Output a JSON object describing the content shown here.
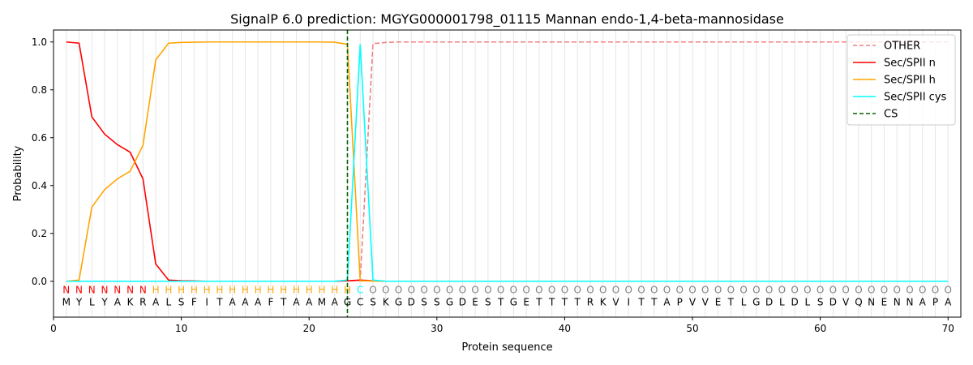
{
  "chart_data": {
    "type": "line",
    "title": "SignalP 6.0 prediction: MGYG000001798_01115 Mannan endo-1,4-beta-mannosidase",
    "xlabel": "Protein sequence",
    "ylabel": "Probability",
    "xlim": [
      0,
      71
    ],
    "ylim": [
      -0.15,
      1.05
    ],
    "xticks": [
      0,
      10,
      20,
      30,
      40,
      50,
      60,
      70
    ],
    "yticks": [
      0.0,
      0.2,
      0.4,
      0.6,
      0.8,
      1.0
    ],
    "grid": "vertical lines at each residue",
    "legend_position": "top-right",
    "sequence": [
      "M",
      "Y",
      "L",
      "Y",
      "A",
      "K",
      "R",
      "A",
      "L",
      "S",
      "F",
      "I",
      "T",
      "A",
      "A",
      "A",
      "F",
      "T",
      "A",
      "A",
      "M",
      "A",
      "G",
      "C",
      "S",
      "K",
      "G",
      "D",
      "S",
      "S",
      "G",
      "D",
      "E",
      "S",
      "T",
      "G",
      "E",
      "T",
      "T",
      "T",
      "T",
      "R",
      "K",
      "V",
      "I",
      "T",
      "T",
      "A",
      "P",
      "V",
      "V",
      "E",
      "T",
      "L",
      "G",
      "D",
      "L",
      "D",
      "L",
      "S",
      "D",
      "V",
      "Q",
      "N",
      "E",
      "N",
      "N",
      "A",
      "P",
      "A"
    ],
    "labels": [
      "N",
      "N",
      "N",
      "N",
      "N",
      "N",
      "N",
      "H",
      "H",
      "H",
      "H",
      "H",
      "H",
      "H",
      "H",
      "H",
      "H",
      "H",
      "H",
      "H",
      "H",
      "H",
      "H",
      "C",
      "O",
      "O",
      "O",
      "O",
      "O",
      "O",
      "O",
      "O",
      "O",
      "O",
      "O",
      "O",
      "O",
      "O",
      "O",
      "O",
      "O",
      "O",
      "O",
      "O",
      "O",
      "O",
      "O",
      "O",
      "O",
      "O",
      "O",
      "O",
      "O",
      "O",
      "O",
      "O",
      "O",
      "O",
      "O",
      "O",
      "O",
      "O",
      "O",
      "O",
      "O",
      "O",
      "O",
      "O",
      "O",
      "O"
    ],
    "label_colors": {
      "N": "#ff0000",
      "H": "#ffa500",
      "C": "#00ffff",
      "O": "#808080"
    },
    "cleavage_site": 23,
    "series": [
      {
        "name": "OTHER",
        "color": "#f08080",
        "dash": true,
        "values": [
          0,
          0,
          0,
          0,
          0,
          0,
          0,
          0,
          0,
          0,
          0,
          0,
          0,
          0,
          0,
          0,
          0,
          0,
          0,
          0,
          0,
          0,
          0.002,
          0.003,
          0.993,
          0.998,
          1,
          1,
          1,
          1,
          1,
          1,
          1,
          1,
          1,
          1,
          1,
          1,
          1,
          1,
          1,
          1,
          1,
          1,
          1,
          1,
          1,
          1,
          1,
          1,
          1,
          1,
          1,
          1,
          1,
          1,
          1,
          1,
          1,
          1,
          1,
          1,
          1,
          1,
          1,
          1,
          1,
          1,
          1,
          1
        ]
      },
      {
        "name": "Sec/SPII n",
        "color": "#ff0000",
        "dash": false,
        "values": [
          1.0,
          0.995,
          0.687,
          0.615,
          0.571,
          0.539,
          0.428,
          0.072,
          0.005,
          0.002,
          0.001,
          0,
          0,
          0,
          0,
          0,
          0,
          0,
          0,
          0,
          0,
          0,
          0.002,
          0.005,
          0.002,
          0,
          0,
          0,
          0,
          0,
          0,
          0,
          0,
          0,
          0,
          0,
          0,
          0,
          0,
          0,
          0,
          0,
          0,
          0,
          0,
          0,
          0,
          0,
          0,
          0,
          0,
          0,
          0,
          0,
          0,
          0,
          0,
          0,
          0,
          0,
          0,
          0,
          0,
          0,
          0,
          0,
          0,
          0,
          0,
          0
        ]
      },
      {
        "name": "Sec/SPII h",
        "color": "#ffa500",
        "dash": false,
        "values": [
          0,
          0.005,
          0.31,
          0.383,
          0.428,
          0.46,
          0.568,
          0.925,
          0.995,
          0.998,
          0.999,
          1,
          1,
          1,
          1,
          1,
          1,
          1,
          1,
          1,
          1,
          0.999,
          0.99,
          0.002,
          0.001,
          0,
          0,
          0,
          0,
          0,
          0,
          0,
          0,
          0,
          0,
          0,
          0,
          0,
          0,
          0,
          0,
          0,
          0,
          0,
          0,
          0,
          0,
          0,
          0,
          0,
          0,
          0,
          0,
          0,
          0,
          0,
          0,
          0,
          0,
          0,
          0,
          0,
          0,
          0,
          0,
          0,
          0,
          0,
          0,
          0
        ]
      },
      {
        "name": "Sec/SPII cys",
        "color": "#00ffff",
        "dash": false,
        "values": [
          0,
          0,
          0,
          0,
          0,
          0,
          0,
          0,
          0,
          0,
          0,
          0,
          0,
          0,
          0,
          0,
          0,
          0,
          0,
          0,
          0,
          0,
          0.005,
          0.99,
          0.005,
          0,
          0,
          0,
          0,
          0,
          0,
          0,
          0,
          0,
          0,
          0,
          0,
          0,
          0,
          0,
          0,
          0,
          0,
          0,
          0,
          0,
          0,
          0,
          0,
          0,
          0,
          0,
          0,
          0,
          0,
          0,
          0,
          0,
          0,
          0,
          0,
          0,
          0,
          0,
          0,
          0,
          0,
          0,
          0,
          0
        ]
      },
      {
        "name": "CS",
        "color": "#006400",
        "dash": true,
        "vertical_at": 23
      }
    ]
  }
}
